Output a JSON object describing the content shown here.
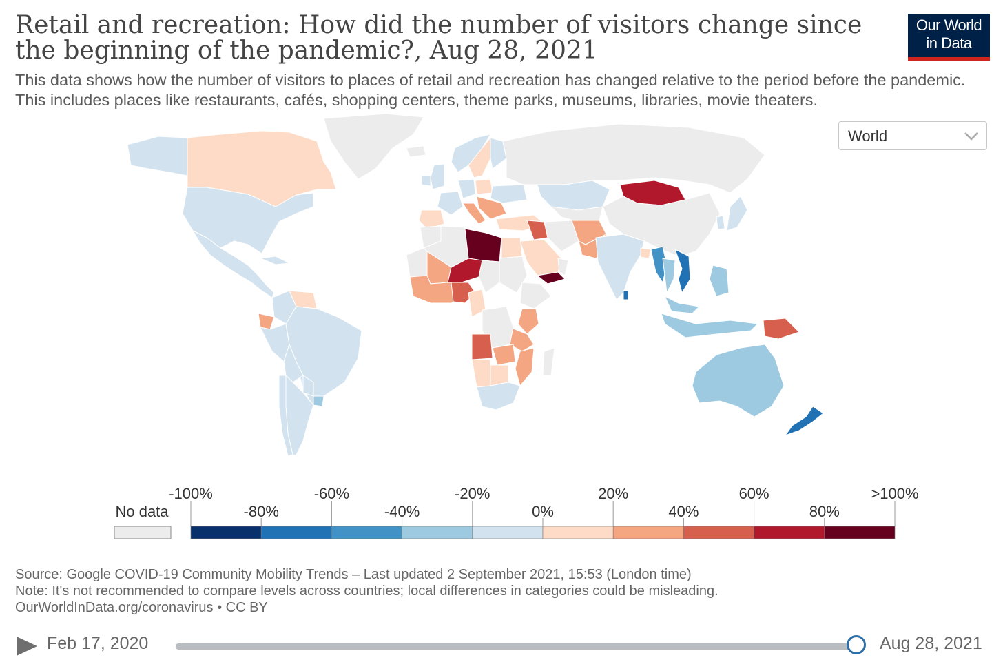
{
  "header": {
    "title": "Retail and recreation: How did the number of visitors change since the beginning of the pandemic?, Aug 28, 2021",
    "subtitle": "This data shows how the number of visitors to places of retail and recreation has changed relative to the period before the pandemic. This includes places like restaurants, cafés, shopping centers, theme parks, museums, libraries, movie theaters.",
    "logo_line1": "Our World",
    "logo_line2": "in Data"
  },
  "region_select": {
    "value": "World",
    "icon": "chevron-down-icon"
  },
  "legend": {
    "no_data_label": "No data",
    "top_labels": [
      "-100%",
      "-60%",
      "-20%",
      "20%",
      "60%",
      ">100%"
    ],
    "bottom_labels": [
      "-80%",
      "-40%",
      "0%",
      "40%",
      "80%"
    ],
    "colors": [
      "#08306b",
      "#2171b5",
      "#4292c6",
      "#9ecae1",
      "#d2e3ef",
      "#fddbc7",
      "#f4a582",
      "#d6604d",
      "#b2182b",
      "#67001f"
    ],
    "no_data_color": "#ececec"
  },
  "footer": {
    "source": "Source: Google COVID-19 Community Mobility Trends – Last updated 2 September 2021, 15:53 (London time)",
    "note": "Note: It's not recommended to compare levels across countries; local differences in categories could be misleading.",
    "link": "OurWorldInData.org/coronavirus • CC BY"
  },
  "timeline": {
    "start": "Feb 17, 2020",
    "end": "Aug 28, 2021",
    "progress": 1.0
  }
}
